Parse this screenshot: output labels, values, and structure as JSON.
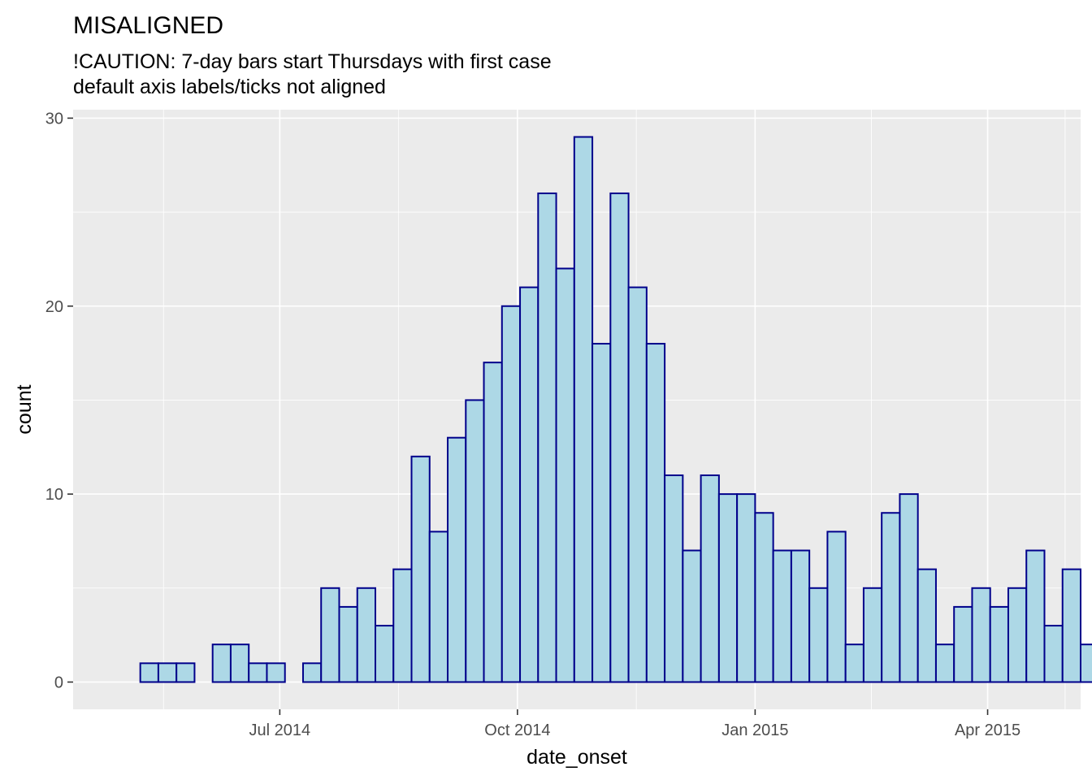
{
  "chart_data": {
    "type": "bar",
    "title": "MISALIGNED",
    "subtitle_lines": [
      "!CAUTION: 7-day bars start Thursdays with first case",
      "default axis labels/ticks not aligned"
    ],
    "xlabel": "date_onset",
    "ylabel": "count",
    "bin_width_days": 7,
    "first_bin_start": "2014-05-08",
    "values": [
      1,
      1,
      1,
      0,
      2,
      2,
      1,
      1,
      0,
      1,
      5,
      4,
      5,
      3,
      6,
      12,
      8,
      13,
      15,
      17,
      20,
      21,
      26,
      22,
      29,
      18,
      26,
      21,
      18,
      11,
      7,
      11,
      10,
      10,
      9,
      7,
      7,
      5,
      8,
      2,
      5,
      9,
      10,
      6,
      2,
      4,
      5,
      4,
      5,
      7,
      3,
      6,
      2
    ],
    "xlim": [
      "2014-04-12",
      "2015-05-07"
    ],
    "ylim": [
      -1.45,
      30.45
    ],
    "y_major_ticks": [
      0,
      10,
      20,
      30
    ],
    "y_minor_ticks": [
      5,
      15,
      25
    ],
    "x_major_ticks": [
      {
        "date": "2014-07-01",
        "label": "Jul 2014"
      },
      {
        "date": "2014-10-01",
        "label": "Oct 2014"
      },
      {
        "date": "2015-01-01",
        "label": "Jan 2015"
      },
      {
        "date": "2015-04-01",
        "label": "Apr 2015"
      }
    ],
    "x_minor_ticks": [
      "2014-05-17",
      "2014-08-16",
      "2014-11-16",
      "2015-02-15",
      "2015-05-01"
    ],
    "grid": true,
    "colors": {
      "panel_background": "#ebebeb",
      "grid_line": "#ffffff",
      "bar_fill": "#add8e6",
      "bar_outline": "#00008b",
      "tick_label": "#4d4d4d",
      "tick_mark": "#333333"
    }
  }
}
